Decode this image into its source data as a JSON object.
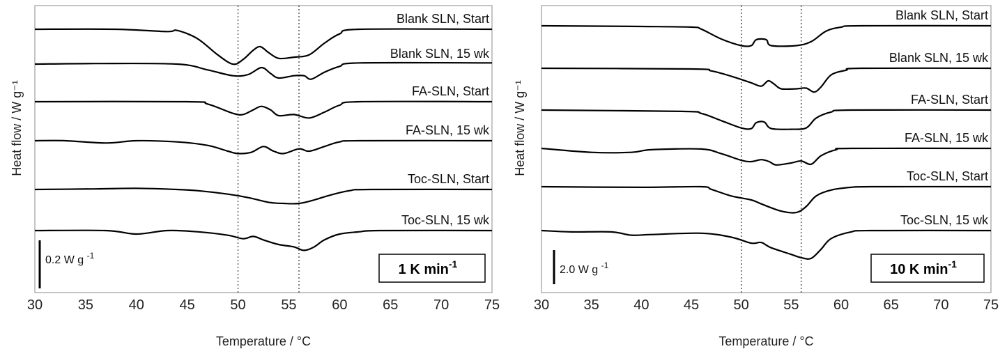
{
  "chart_data": [
    {
      "type": "line",
      "xlabel": "Temperature / °C",
      "ylabel": "Heat flow / W g⁻¹",
      "xlim": [
        30,
        75
      ],
      "xticks": [
        30,
        35,
        40,
        45,
        50,
        55,
        60,
        65,
        70,
        75
      ],
      "reference_lines_x": [
        50,
        56
      ],
      "rate_label": "1 K min",
      "rate_exp": "-1",
      "scale_bar": {
        "label": "0.2 W g",
        "exp": "-1",
        "value_w_per_g": 0.2
      },
      "series": [
        {
          "name": "Blank SLN, Start",
          "points": [
            [
              30,
              0.0
            ],
            [
              38,
              0.0
            ],
            [
              43,
              -0.02
            ],
            [
              44,
              -0.01
            ],
            [
              46,
              -0.08
            ],
            [
              48,
              -0.22
            ],
            [
              49.5,
              -0.3
            ],
            [
              50.5,
              -0.26
            ],
            [
              51.5,
              -0.18
            ],
            [
              52.2,
              -0.15
            ],
            [
              53,
              -0.2
            ],
            [
              54,
              -0.25
            ],
            [
              55.5,
              -0.24
            ],
            [
              57,
              -0.22
            ],
            [
              58.5,
              -0.12
            ],
            [
              60,
              -0.04
            ],
            [
              62,
              0.0
            ],
            [
              75,
              0.0
            ]
          ]
        },
        {
          "name": "Blank SLN, 15 wk",
          "points": [
            [
              30,
              0.0
            ],
            [
              36,
              0.005
            ],
            [
              44,
              0.0
            ],
            [
              47,
              -0.05
            ],
            [
              49.5,
              -0.1
            ],
            [
              51,
              -0.09
            ],
            [
              52.3,
              -0.03
            ],
            [
              53.2,
              -0.08
            ],
            [
              54,
              -0.12
            ],
            [
              55.5,
              -0.1
            ],
            [
              56.5,
              -0.1
            ],
            [
              57.2,
              -0.13
            ],
            [
              58.5,
              -0.07
            ],
            [
              60,
              -0.02
            ],
            [
              62,
              0.01
            ],
            [
              75,
              0.01
            ]
          ]
        },
        {
          "name": "FA-SLN, Start",
          "points": [
            [
              30,
              0.0
            ],
            [
              45,
              0.0
            ],
            [
              47,
              -0.02
            ],
            [
              49.5,
              -0.1
            ],
            [
              50.5,
              -0.11
            ],
            [
              51.5,
              -0.07
            ],
            [
              52.3,
              -0.04
            ],
            [
              53.2,
              -0.07
            ],
            [
              54,
              -0.12
            ],
            [
              55.5,
              -0.11
            ],
            [
              57,
              -0.14
            ],
            [
              58.5,
              -0.09
            ],
            [
              60,
              -0.03
            ],
            [
              62,
              0.0
            ],
            [
              75,
              0.0
            ]
          ]
        },
        {
          "name": "FA-SLN, 15 wk",
          "points": [
            [
              30,
              0.0
            ],
            [
              33,
              0.0
            ],
            [
              37,
              -0.02
            ],
            [
              40,
              0.0
            ],
            [
              44,
              -0.01
            ],
            [
              47,
              -0.04
            ],
            [
              49,
              -0.09
            ],
            [
              50,
              -0.11
            ],
            [
              51.3,
              -0.1
            ],
            [
              52.5,
              -0.05
            ],
            [
              53.5,
              -0.09
            ],
            [
              54.5,
              -0.11
            ],
            [
              56,
              -0.07
            ],
            [
              57,
              -0.09
            ],
            [
              58.5,
              -0.05
            ],
            [
              60,
              -0.01
            ],
            [
              62,
              0.0
            ],
            [
              75,
              0.0
            ]
          ]
        },
        {
          "name": "Toc-SLN, Start",
          "points": [
            [
              30,
              0.0
            ],
            [
              36,
              0.005
            ],
            [
              40,
              0.01
            ],
            [
              44,
              0.0
            ],
            [
              46,
              -0.01
            ],
            [
              49,
              -0.04
            ],
            [
              51,
              -0.07
            ],
            [
              53,
              -0.11
            ],
            [
              54.5,
              -0.12
            ],
            [
              56,
              -0.12
            ],
            [
              57.5,
              -0.09
            ],
            [
              59,
              -0.05
            ],
            [
              61,
              -0.01
            ],
            [
              63,
              0.0
            ],
            [
              75,
              0.0
            ]
          ]
        },
        {
          "name": "Toc-SLN, 15 wk",
          "points": [
            [
              30,
              0.0
            ],
            [
              37,
              0.0
            ],
            [
              40,
              -0.03
            ],
            [
              43,
              0.0
            ],
            [
              46,
              -0.01
            ],
            [
              49,
              -0.04
            ],
            [
              50.5,
              -0.07
            ],
            [
              51.5,
              -0.05
            ],
            [
              52.5,
              -0.08
            ],
            [
              54,
              -0.12
            ],
            [
              55.5,
              -0.14
            ],
            [
              56.5,
              -0.17
            ],
            [
              57.5,
              -0.14
            ],
            [
              58.5,
              -0.08
            ],
            [
              60,
              -0.03
            ],
            [
              62,
              -0.01
            ],
            [
              64,
              0.0
            ],
            [
              75,
              0.0
            ]
          ]
        }
      ]
    },
    {
      "type": "line",
      "xlabel": "Temperature / °C",
      "ylabel": "Heat flow / W g⁻¹",
      "xlim": [
        30,
        75
      ],
      "xticks": [
        30,
        35,
        40,
        45,
        50,
        55,
        60,
        65,
        70,
        75
      ],
      "reference_lines_x": [
        50,
        56
      ],
      "rate_label": "10 K min",
      "rate_exp": "-1",
      "scale_bar": {
        "label": "2.0 W g",
        "exp": "-1",
        "value_w_per_g": 2.0
      },
      "series": [
        {
          "name": "Blank SLN, Start",
          "points": [
            [
              30,
              0.0
            ],
            [
              40,
              -0.05
            ],
            [
              45,
              -0.1
            ],
            [
              46,
              -0.25
            ],
            [
              48,
              -1.0
            ],
            [
              50,
              -1.5
            ],
            [
              51,
              -1.5
            ],
            [
              51.5,
              -1.05
            ],
            [
              52.5,
              -1.05
            ],
            [
              53,
              -1.5
            ],
            [
              55.5,
              -1.5
            ],
            [
              57,
              -1.2
            ],
            [
              58.5,
              -0.4
            ],
            [
              60,
              -0.1
            ],
            [
              62,
              0.0
            ],
            [
              75,
              0.0
            ]
          ]
        },
        {
          "name": "Blank SLN, 15 wk",
          "points": [
            [
              30,
              0.0
            ],
            [
              45,
              -0.05
            ],
            [
              47,
              -0.2
            ],
            [
              49,
              -0.6
            ],
            [
              51,
              -1.1
            ],
            [
              52,
              -1.35
            ],
            [
              52.7,
              -0.95
            ],
            [
              53.3,
              -1.2
            ],
            [
              54,
              -1.55
            ],
            [
              55.5,
              -1.55
            ],
            [
              56.5,
              -1.5
            ],
            [
              57.3,
              -1.8
            ],
            [
              58,
              -1.4
            ],
            [
              59,
              -0.5
            ],
            [
              60.5,
              -0.15
            ],
            [
              62,
              0.0
            ],
            [
              75,
              0.0
            ]
          ]
        },
        {
          "name": "FA-SLN, Start",
          "points": [
            [
              30,
              0.0
            ],
            [
              44,
              -0.1
            ],
            [
              46,
              -0.25
            ],
            [
              48,
              -0.8
            ],
            [
              50,
              -1.35
            ],
            [
              51,
              -1.4
            ],
            [
              51.5,
              -0.95
            ],
            [
              52.3,
              -0.9
            ],
            [
              53,
              -1.4
            ],
            [
              55,
              -1.45
            ],
            [
              56.5,
              -1.35
            ],
            [
              57.5,
              -0.6
            ],
            [
              59,
              -0.15
            ],
            [
              61,
              0.0
            ],
            [
              75,
              0.0
            ]
          ]
        },
        {
          "name": "FA-SLN, 15 wk",
          "points": [
            [
              30,
              0.0
            ],
            [
              35,
              -0.3
            ],
            [
              39,
              -0.3
            ],
            [
              41,
              -0.1
            ],
            [
              46,
              -0.05
            ],
            [
              48,
              -0.4
            ],
            [
              50,
              -0.9
            ],
            [
              51,
              -1.0
            ],
            [
              52,
              -0.85
            ],
            [
              52.8,
              -1.0
            ],
            [
              53.5,
              -1.25
            ],
            [
              55,
              -1.1
            ],
            [
              56,
              -0.95
            ],
            [
              57,
              -1.2
            ],
            [
              58,
              -0.55
            ],
            [
              59.5,
              -0.1
            ],
            [
              61,
              0.0
            ],
            [
              75,
              0.0
            ]
          ]
        },
        {
          "name": "Toc-SLN, Start",
          "points": [
            [
              30,
              0.0
            ],
            [
              40,
              -0.05
            ],
            [
              46,
              0.0
            ],
            [
              47,
              -0.2
            ],
            [
              49,
              -0.7
            ],
            [
              51,
              -1.0
            ],
            [
              52,
              -1.3
            ],
            [
              54,
              -1.85
            ],
            [
              55.5,
              -1.95
            ],
            [
              56.5,
              -1.5
            ],
            [
              57.5,
              -0.7
            ],
            [
              59,
              -0.25
            ],
            [
              61,
              -0.05
            ],
            [
              63,
              0.0
            ],
            [
              75,
              0.0
            ]
          ]
        },
        {
          "name": "Toc-SLN, 15 wk",
          "points": [
            [
              30,
              0.0
            ],
            [
              33,
              -0.1
            ],
            [
              37,
              -0.1
            ],
            [
              39,
              -0.35
            ],
            [
              41,
              -0.3
            ],
            [
              46,
              -0.2
            ],
            [
              49,
              -0.5
            ],
            [
              51,
              -0.95
            ],
            [
              52,
              -0.9
            ],
            [
              53,
              -1.3
            ],
            [
              55,
              -1.8
            ],
            [
              56,
              -2.05
            ],
            [
              57,
              -2.1
            ],
            [
              58,
              -1.4
            ],
            [
              59,
              -0.6
            ],
            [
              61,
              -0.1
            ],
            [
              63,
              0.0
            ],
            [
              75,
              0.0
            ]
          ]
        }
      ]
    }
  ]
}
